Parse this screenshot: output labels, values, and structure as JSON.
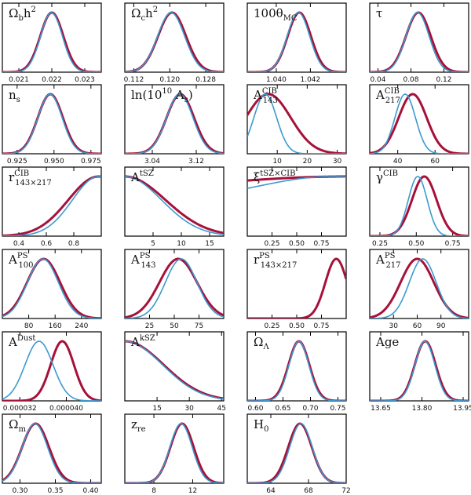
{
  "colors": {
    "model_a": "#a6113a",
    "model_b": "#3b9ad0",
    "frame": "#000000"
  },
  "chart_data": [
    {
      "type": "line",
      "label": "Ω_b h²",
      "label_base": "Ω",
      "label_sub": "b",
      "label_tail": "h",
      "label_sup": "2",
      "xlim": [
        0.0205,
        0.0235
      ],
      "ticks": [
        0.021,
        0.022,
        0.023
      ],
      "tick_labels": [
        "0.021",
        "0.022",
        "0.023"
      ],
      "series": [
        {
          "peak": 0.022,
          "sd": 0.00035
        },
        {
          "peak": 0.02199,
          "sd": 0.00033
        }
      ]
    },
    {
      "type": "line",
      "label": "Ω_c h²",
      "label_base": "Ω",
      "label_sub": "c",
      "label_tail": "h",
      "label_sup": "2",
      "xlim": [
        0.11,
        0.132
      ],
      "ticks": [
        0.112,
        0.12,
        0.128
      ],
      "tick_labels": [
        "0.112",
        "0.120",
        "0.128"
      ],
      "series": [
        {
          "peak": 0.1205,
          "sd": 0.0031
        },
        {
          "peak": 0.1203,
          "sd": 0.003
        }
      ]
    },
    {
      "type": "line",
      "label": "100θ_MC",
      "label_base": "100θ",
      "label_sub": "MC",
      "xlim": [
        1.0383,
        1.0441
      ],
      "ticks": [
        1.04,
        1.042
      ],
      "tick_labels": [
        "1.040",
        "1.042"
      ],
      "series": [
        {
          "peak": 1.04135,
          "sd": 0.00068
        },
        {
          "peak": 1.0413,
          "sd": 0.00066
        }
      ]
    },
    {
      "type": "line",
      "label": "τ",
      "label_base": "τ",
      "xlim": [
        0.03,
        0.15
      ],
      "ticks": [
        0.04,
        0.08,
        0.12
      ],
      "tick_labels": [
        "0.04",
        "0.08",
        "0.12"
      ],
      "series": [
        {
          "peak": 0.089,
          "sd": 0.015
        },
        {
          "peak": 0.088,
          "sd": 0.014
        }
      ]
    },
    {
      "type": "line",
      "label": "n_s",
      "label_base": "n",
      "label_sub": "s",
      "xlim": [
        0.915,
        0.982
      ],
      "ticks": [
        0.925,
        0.95,
        0.975
      ],
      "tick_labels": [
        "0.925",
        "0.950",
        "0.975"
      ],
      "series": [
        {
          "peak": 0.9475,
          "sd": 0.0085
        },
        {
          "peak": 0.9473,
          "sd": 0.0082
        }
      ]
    },
    {
      "type": "line",
      "label": "ln(10¹⁰ A_s)",
      "label_base": "ln(10",
      "label_sup": "10",
      "label_tail": " A",
      "label_sub": "s",
      "label_close": ")",
      "xlim": [
        2.99,
        3.17
      ],
      "ticks": [
        3.04,
        3.12
      ],
      "tick_labels": [
        "3.04",
        "3.12"
      ],
      "series": [
        {
          "peak": 3.091,
          "sd": 0.025
        },
        {
          "peak": 3.09,
          "sd": 0.024
        }
      ]
    },
    {
      "type": "line",
      "label": "A^CIB_143",
      "label_base": "A",
      "label_sup": "CIB",
      "label_sub": "143",
      "xlim": [
        0,
        33
      ],
      "ticks": [
        10,
        20,
        30
      ],
      "tick_labels": [
        "10",
        "20",
        "30"
      ],
      "series": [
        {
          "peak": 7,
          "sd": 7.5
        },
        {
          "peak": 6,
          "sd": 3.8
        }
      ]
    },
    {
      "type": "line",
      "label": "A^CIB_217",
      "label_base": "A",
      "label_sup": "CIB",
      "label_sub": "217",
      "xlim": [
        25,
        78
      ],
      "ticks": [
        40,
        60
      ],
      "tick_labels": [
        "40",
        "60"
      ],
      "series": [
        {
          "peak": 48,
          "sd": 7.5
        },
        {
          "peak": 44,
          "sd": 5.5
        }
      ]
    },
    {
      "type": "line",
      "label": "r^CIB_143×217",
      "label_base": "r",
      "label_sup": "CIB",
      "label_sub": "143×217",
      "xlim": [
        0.28,
        1.0
      ],
      "ticks": [
        0.4,
        0.6,
        0.8
      ],
      "tick_labels": [
        "0.4",
        "0.6",
        "0.8"
      ],
      "series": [
        {
          "peak": 0.98,
          "sd": 0.22
        },
        {
          "peak": 0.98,
          "sd": 0.19
        }
      ]
    },
    {
      "type": "line",
      "label": "A^tSZ",
      "label_base": "A",
      "label_sup": "tSZ",
      "xlim": [
        0,
        17.5
      ],
      "ticks": [
        5,
        10,
        15
      ],
      "tick_labels": [
        "5",
        "10",
        "15"
      ],
      "series": [
        {
          "peak": 0,
          "sd": 7.2
        },
        {
          "peak": 0,
          "sd": 6.5
        }
      ]
    },
    {
      "type": "line",
      "label": "ξ^tSZ×CIB",
      "label_base": "ξ",
      "label_sup": "tSZ×CIB",
      "xlim": [
        0,
        1.0
      ],
      "ticks": [
        0.25,
        0.5,
        0.75
      ],
      "tick_labels": [
        "0.25",
        "0.50",
        "0.75"
      ],
      "series": [
        {
          "peak": 1.0,
          "sd": 1.6,
          "floor": 0.62
        },
        {
          "peak": 0.85,
          "sd": 0.75,
          "floor": 0.58
        }
      ]
    },
    {
      "type": "line",
      "label": "γ^CIB",
      "label_base": "γ",
      "label_sup": "CIB",
      "xlim": [
        0.18,
        0.86
      ],
      "ticks": [
        0.25,
        0.5,
        0.75
      ],
      "tick_labels": [
        "0.25",
        "0.50",
        "0.75"
      ],
      "series": [
        {
          "peak": 0.555,
          "sd": 0.085
        },
        {
          "peak": 0.51,
          "sd": 0.065
        }
      ]
    },
    {
      "type": "line",
      "label": "A^PS_100",
      "label_base": "A",
      "label_sup": "PS",
      "label_sub": "100",
      "xlim": [
        0,
        300
      ],
      "ticks": [
        80,
        160,
        240
      ],
      "tick_labels": [
        "80",
        "160",
        "240"
      ],
      "series": [
        {
          "peak": 125,
          "sd": 50
        },
        {
          "peak": 123,
          "sd": 47
        }
      ]
    },
    {
      "type": "line",
      "label": "A^PS_143",
      "label_base": "A",
      "label_sup": "PS",
      "label_sub": "143",
      "xlim": [
        0,
        100
      ],
      "ticks": [
        25,
        50,
        75
      ],
      "tick_labels": [
        "25",
        "50",
        "75"
      ],
      "series": [
        {
          "peak": 54,
          "sd": 19
        },
        {
          "peak": 57,
          "sd": 16
        }
      ]
    },
    {
      "type": "line",
      "label": "r^PS_143×217",
      "label_base": "r",
      "label_sup": "PS",
      "label_sub": "143×217",
      "xlim": [
        0,
        1.0
      ],
      "ticks": [
        0.25,
        0.5,
        0.75
      ],
      "tick_labels": [
        "0.25",
        "0.50",
        "0.75"
      ],
      "series": [
        {
          "peak": 0.9,
          "sd": 0.11
        }
      ]
    },
    {
      "type": "line",
      "label": "A^PS_217",
      "label_base": "A",
      "label_sup": "PS",
      "label_sub": "217",
      "xlim": [
        0,
        125
      ],
      "ticks": [
        30,
        60,
        90
      ],
      "tick_labels": [
        "30",
        "60",
        "90"
      ],
      "series": [
        {
          "peak": 60,
          "sd": 21
        },
        {
          "peak": 67,
          "sd": 17
        }
      ]
    },
    {
      "type": "line",
      "label": "A^Dust",
      "label_base": "A",
      "label_sup": "Dust",
      "xlim": [
        2.9e-05,
        4.6e-05
      ],
      "ticks": [
        3.2e-05,
        4e-05
      ],
      "tick_labels": [
        "0.000032",
        "0.000040"
      ],
      "series": [
        {
          "peak": 3.93e-05,
          "sd": 2e-06
        },
        {
          "peak": 3.53e-05,
          "sd": 2.4e-06
        }
      ]
    },
    {
      "type": "line",
      "label": "A^kSZ",
      "label_base": "A",
      "label_sup": "kSZ",
      "xlim": [
        0,
        46
      ],
      "ticks": [
        15,
        30,
        45
      ],
      "tick_labels": [
        "15",
        "30",
        "45"
      ],
      "series": [
        {
          "peak": 0,
          "sd": 18
        },
        {
          "peak": 0,
          "sd": 17.5
        }
      ]
    },
    {
      "type": "line",
      "label": "Ω_Λ",
      "label_base": "Ω",
      "label_sub": "Λ",
      "xlim": [
        0.585,
        0.765
      ],
      "ticks": [
        0.6,
        0.65,
        0.7,
        0.75
      ],
      "tick_labels": [
        "0.60",
        "0.65",
        "0.70",
        "0.75"
      ],
      "series": [
        {
          "peak": 0.679,
          "sd": 0.019
        },
        {
          "peak": 0.679,
          "sd": 0.018
        }
      ]
    },
    {
      "type": "line",
      "label": "Age",
      "label_base": "Age",
      "xlim": [
        13.61,
        13.97
      ],
      "ticks": [
        13.65,
        13.8,
        13.95
      ],
      "tick_labels": [
        "13.65",
        "13.80",
        "13.95"
      ],
      "series": [
        {
          "peak": 13.812,
          "sd": 0.038
        },
        {
          "peak": 13.811,
          "sd": 0.036
        }
      ]
    },
    {
      "type": "line",
      "label": "Ω_m",
      "label_base": "Ω",
      "label_sub": "m",
      "xlim": [
        0.275,
        0.415
      ],
      "ticks": [
        0.3,
        0.35,
        0.4
      ],
      "tick_labels": [
        "0.30",
        "0.35",
        "0.40"
      ],
      "series": [
        {
          "peak": 0.322,
          "sd": 0.019
        },
        {
          "peak": 0.321,
          "sd": 0.018
        }
      ]
    },
    {
      "type": "line",
      "label": "z_re",
      "label_base": "z",
      "label_sub": "re",
      "xlim": [
        5.0,
        15.2
      ],
      "ticks": [
        8,
        12
      ],
      "tick_labels": [
        "8",
        "12"
      ],
      "series": [
        {
          "peak": 10.9,
          "sd": 1.2
        },
        {
          "peak": 10.8,
          "sd": 1.15
        }
      ]
    },
    {
      "type": "line",
      "label": "H_0",
      "label_base": "H",
      "label_sub": "0",
      "xlim": [
        61.5,
        72.0
      ],
      "ticks": [
        64,
        68,
        72
      ],
      "tick_labels": [
        "64",
        "68",
        "72"
      ],
      "series": [
        {
          "peak": 67.1,
          "sd": 1.25
        },
        {
          "peak": 67.2,
          "sd": 1.2
        }
      ]
    }
  ]
}
